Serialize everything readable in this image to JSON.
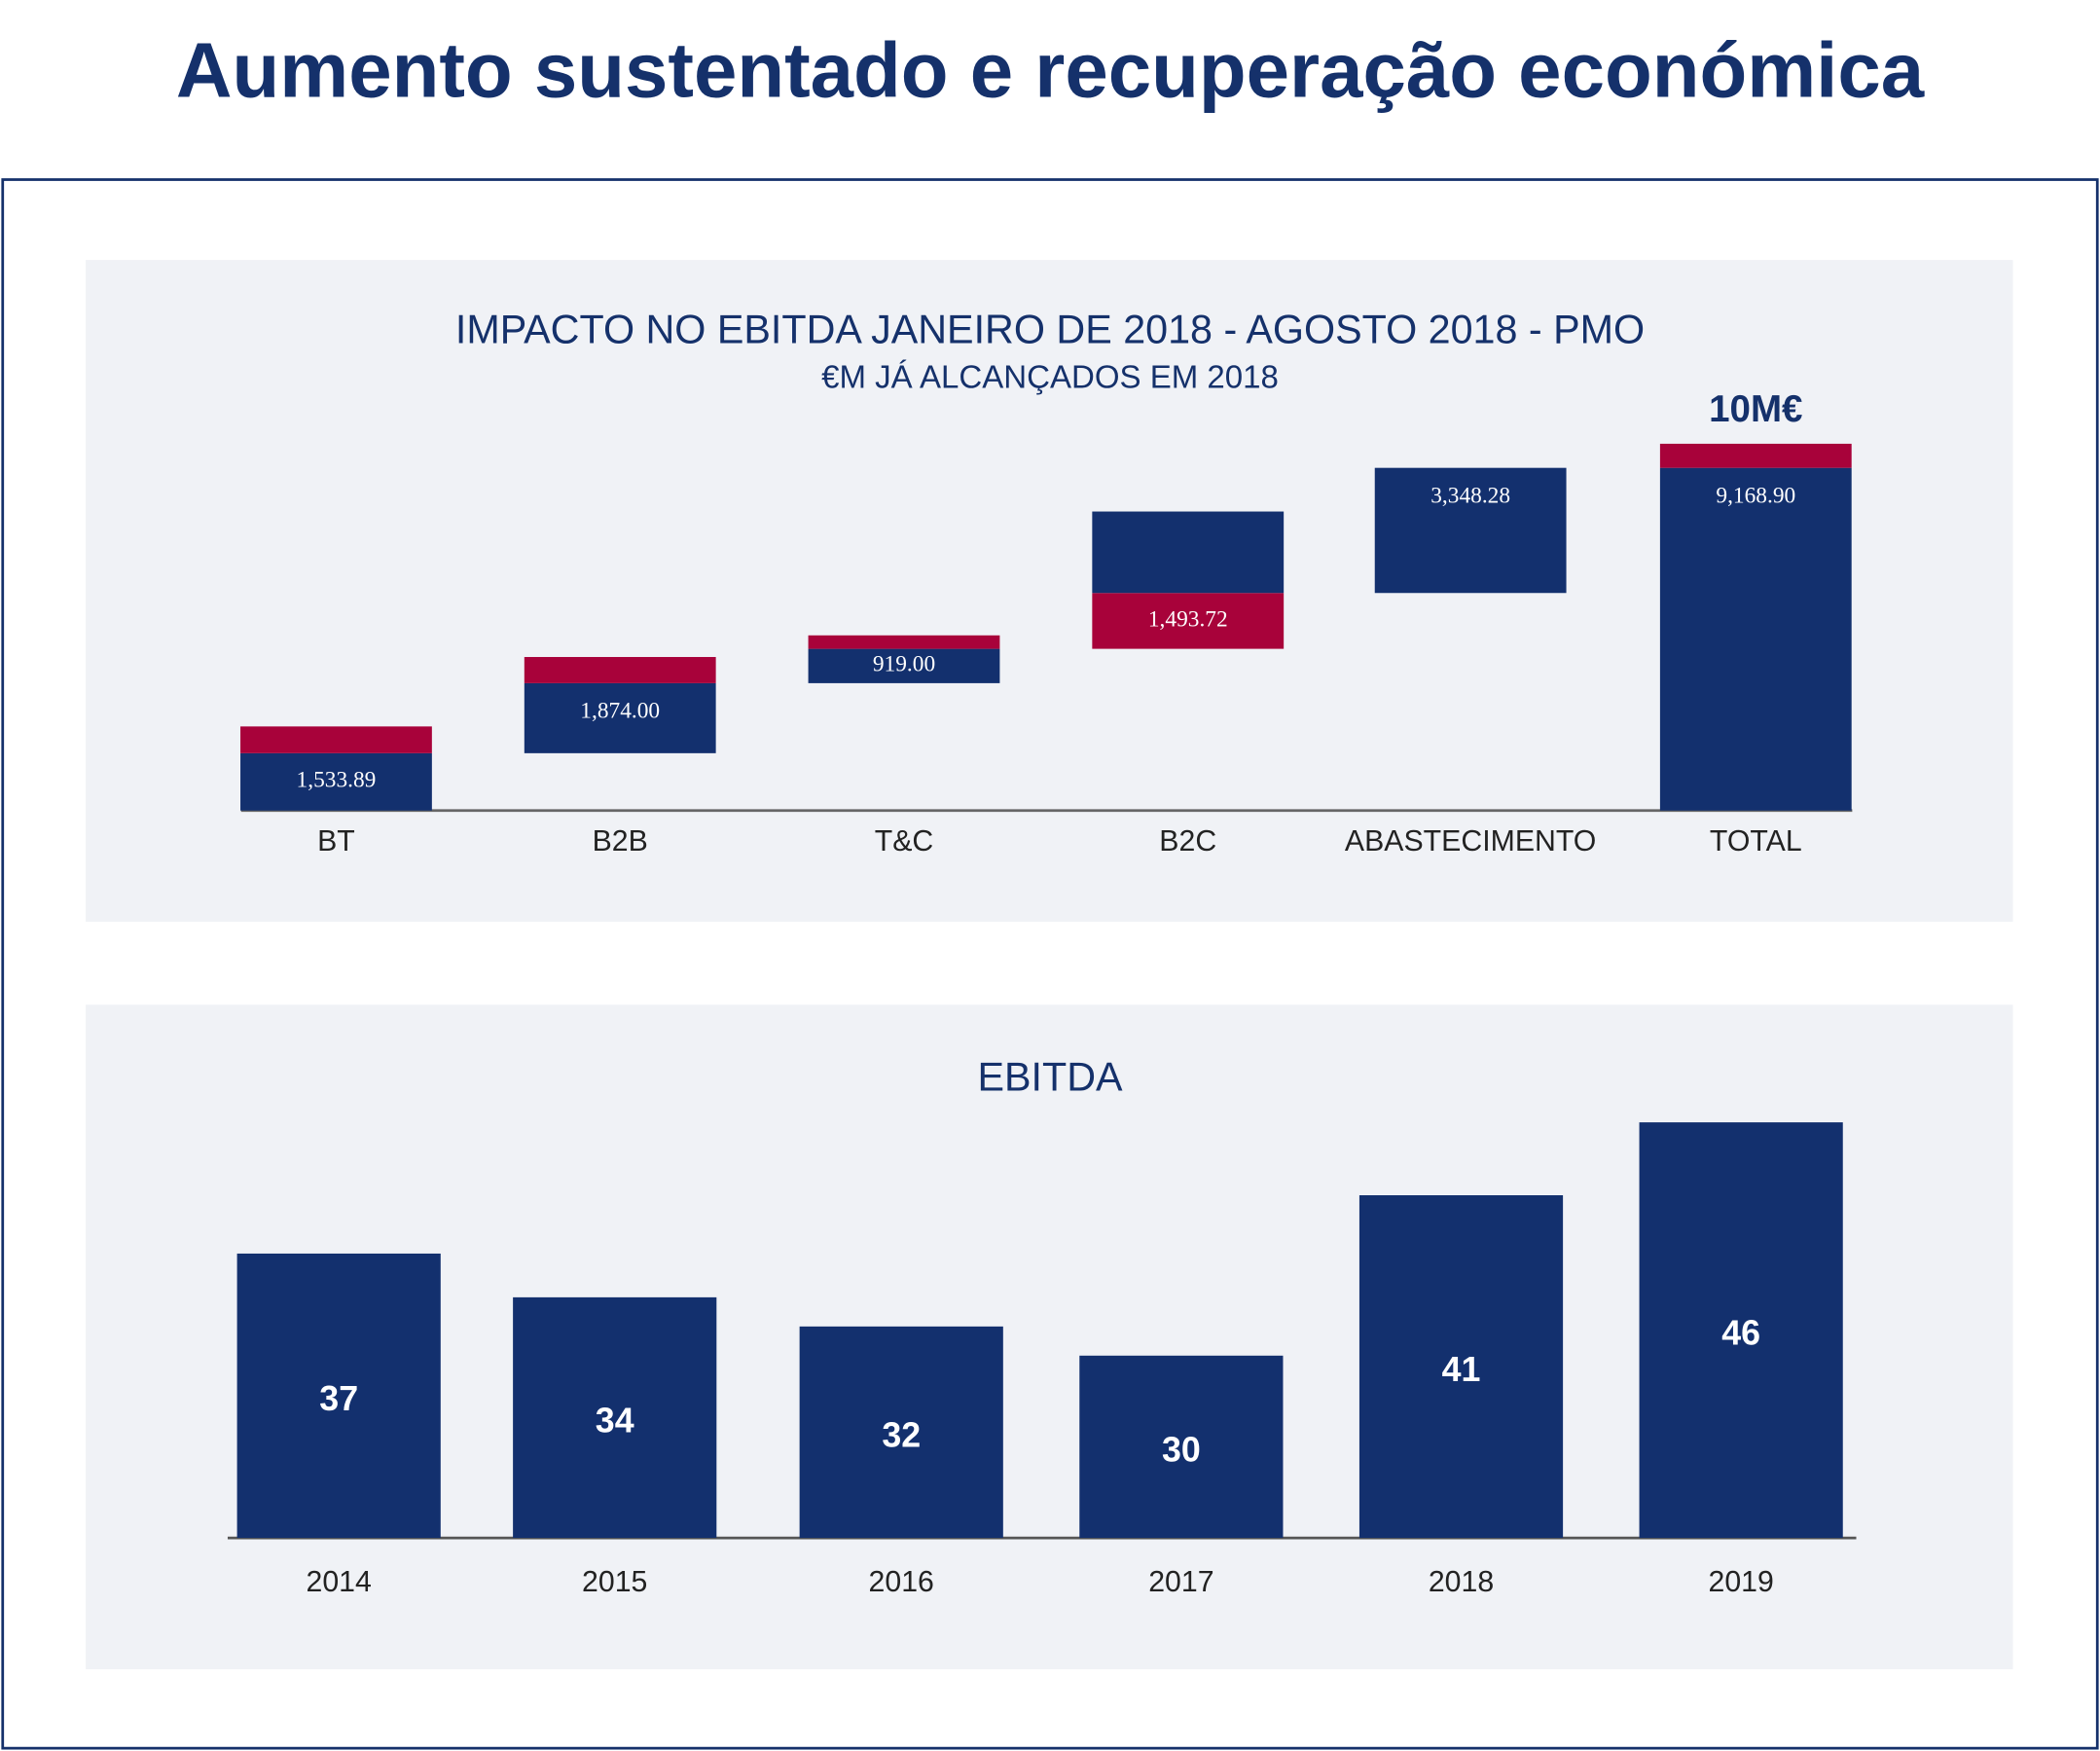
{
  "title": "Aumento sustentado e recuperação económica",
  "chart_data": [
    {
      "type": "waterfall",
      "title": "IMPACTO NO EBITDA JANEIRO DE 2018 - AGOSTO 2018 - PMO",
      "subtitle": "€M JÁ ALCANÇADOS EM  2018",
      "annotation": "10M€",
      "categories": [
        "BT",
        "B2B",
        "T&C",
        "B2C",
        "ABASTECIMENTO",
        "TOTAL"
      ],
      "series": [
        {
          "colors": [
            "#13306e",
            "#13306e",
            "#13306e",
            "#a8023a",
            "#13306e",
            "#13306e"
          ],
          "values": [
            1533.89,
            1874.0,
            919.0,
            1493.72,
            3348.28,
            9168.9
          ],
          "value_labels": [
            "1,533.89",
            "1,874.00",
            "919.00",
            "1,493.72",
            "3,348.28",
            "9,168.90"
          ]
        },
        {
          "colors": [
            "#a8023a",
            "#a8023a",
            "#a8023a",
            "#13306e",
            null,
            "#a8023a"
          ],
          "values": [
            716,
            700,
            360,
            2180,
            null,
            645
          ]
        }
      ],
      "ylim": [
        0,
        10000
      ]
    },
    {
      "type": "bar",
      "title": "EBITDA",
      "categories": [
        "2014",
        "2015",
        "2016",
        "2017",
        "2018",
        "2019"
      ],
      "values": [
        37,
        34,
        32,
        30,
        41,
        46
      ],
      "color": "#13306e",
      "ylim": [
        17.5,
        48
      ]
    }
  ]
}
